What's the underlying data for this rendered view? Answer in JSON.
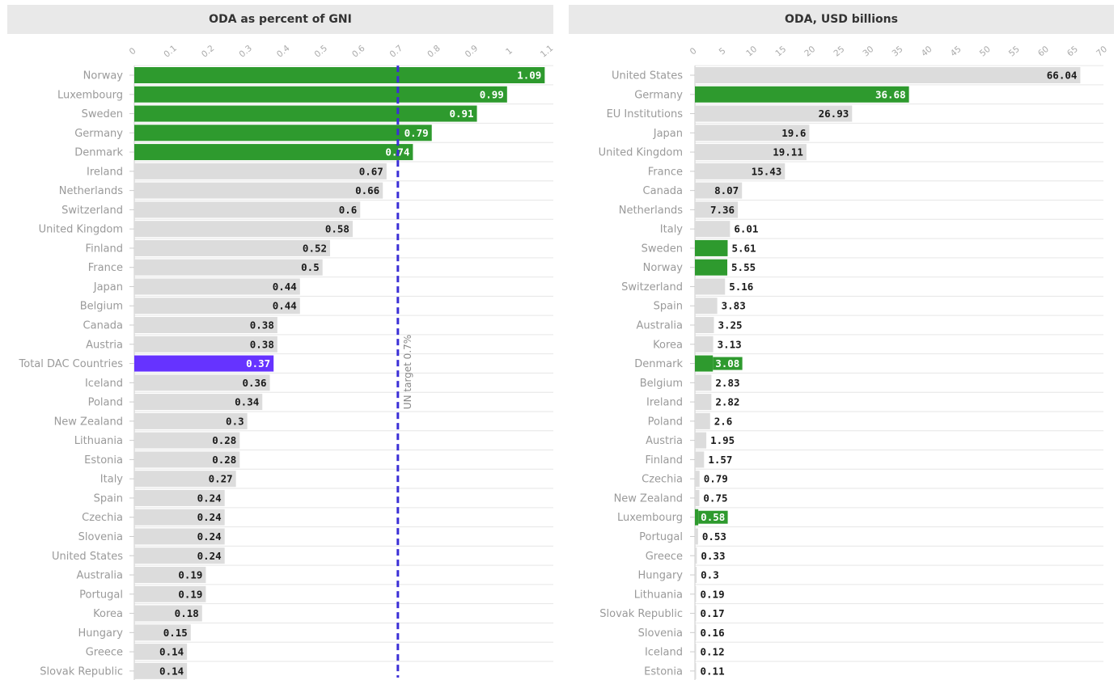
{
  "colors": {
    "bar_default": "#dcdcdc",
    "bar_highlight": "#2e9a2e",
    "bar_total": "#6633ff",
    "target_line": "#3b2fd6",
    "header_bg": "#e9e9e9",
    "grid": "#e6e6e6"
  },
  "chart_data": [
    {
      "type": "bar",
      "orientation": "horizontal",
      "title": "ODA as percent of GNI",
      "xlim": [
        0,
        1.1
      ],
      "ticks": [
        "0",
        "0.1",
        "0.2",
        "0.3",
        "0.4",
        "0.5",
        "0.6",
        "0.7",
        "0.8",
        "0.9",
        "1",
        "1.1"
      ],
      "tick_values": [
        0,
        0.1,
        0.2,
        0.3,
        0.4,
        0.5,
        0.6,
        0.7,
        0.8,
        0.9,
        1.0,
        1.1
      ],
      "categories": [
        "Norway",
        "Luxembourg",
        "Sweden",
        "Germany",
        "Denmark",
        "Ireland",
        "Netherlands",
        "Switzerland",
        "United Kingdom",
        "Finland",
        "France",
        "Japan",
        "Belgium",
        "Canada",
        "Austria",
        "Total DAC Countries",
        "Iceland",
        "Poland",
        "New Zealand",
        "Lithuania",
        "Estonia",
        "Italy",
        "Spain",
        "Czechia",
        "Slovenia",
        "United States",
        "Australia",
        "Portugal",
        "Korea",
        "Hungary",
        "Greece",
        "Slovak Republic"
      ],
      "values": [
        1.09,
        0.99,
        0.91,
        0.79,
        0.74,
        0.67,
        0.66,
        0.6,
        0.58,
        0.52,
        0.5,
        0.44,
        0.44,
        0.38,
        0.38,
        0.37,
        0.36,
        0.34,
        0.3,
        0.28,
        0.28,
        0.27,
        0.24,
        0.24,
        0.24,
        0.24,
        0.19,
        0.19,
        0.18,
        0.15,
        0.14,
        0.14
      ],
      "labels": [
        "1.09",
        "0.99",
        "0.91",
        "0.79",
        "0.74",
        "0.67",
        "0.66",
        "0.6",
        "0.58",
        "0.52",
        "0.5",
        "0.44",
        "0.44",
        "0.38",
        "0.38",
        "0.37",
        "0.36",
        "0.34",
        "0.3",
        "0.28",
        "0.28",
        "0.27",
        "0.24",
        "0.24",
        "0.24",
        "0.24",
        "0.19",
        "0.19",
        "0.18",
        "0.15",
        "0.14",
        "0.14"
      ],
      "highlight_green": [
        "Norway",
        "Luxembourg",
        "Sweden",
        "Germany",
        "Denmark"
      ],
      "highlight_total": [
        "Total DAC Countries"
      ],
      "reference_line": {
        "value": 0.7,
        "label": "UN target 0.7%"
      }
    },
    {
      "type": "bar",
      "orientation": "horizontal",
      "title": "ODA, USD billions",
      "xlim": [
        0,
        70
      ],
      "ticks": [
        "0",
        "5",
        "10",
        "15",
        "20",
        "25",
        "30",
        "35",
        "40",
        "45",
        "50",
        "55",
        "60",
        "65",
        "70"
      ],
      "tick_values": [
        0,
        5,
        10,
        15,
        20,
        25,
        30,
        35,
        40,
        45,
        50,
        55,
        60,
        65,
        70
      ],
      "categories": [
        "United States",
        "Germany",
        "EU Institutions",
        "Japan",
        "United Kingdom",
        "France",
        "Canada",
        "Netherlands",
        "Italy",
        "Sweden",
        "Norway",
        "Switzerland",
        "Spain",
        "Australia",
        "Korea",
        "Denmark",
        "Belgium",
        "Ireland",
        "Poland",
        "Austria",
        "Finland",
        "Czechia",
        "New Zealand",
        "Luxembourg",
        "Portugal",
        "Greece",
        "Hungary",
        "Lithuania",
        "Slovak Republic",
        "Slovenia",
        "Iceland",
        "Estonia"
      ],
      "values": [
        66.04,
        36.68,
        26.93,
        19.6,
        19.11,
        15.43,
        8.07,
        7.36,
        6.01,
        5.61,
        5.55,
        5.16,
        3.83,
        3.25,
        3.13,
        3.08,
        2.83,
        2.82,
        2.6,
        1.95,
        1.57,
        0.79,
        0.75,
        0.58,
        0.53,
        0.33,
        0.3,
        0.19,
        0.17,
        0.16,
        0.12,
        0.11
      ],
      "labels": [
        "66.04",
        "36.68",
        "26.93",
        "19.6",
        "19.11",
        "15.43",
        "8.07",
        "7.36",
        "6.01",
        "5.61",
        "5.55",
        "5.16",
        "3.83",
        "3.25",
        "3.13",
        "3.08",
        "2.83",
        "2.82",
        "2.6",
        "1.95",
        "1.57",
        "0.79",
        "0.75",
        "0.58",
        "0.53",
        "0.33",
        "0.3",
        "0.19",
        "0.17",
        "0.16",
        "0.12",
        "0.11"
      ],
      "highlight_green": [
        "Germany",
        "Sweden",
        "Norway",
        "Denmark",
        "Luxembourg"
      ],
      "highlight_total": []
    }
  ]
}
